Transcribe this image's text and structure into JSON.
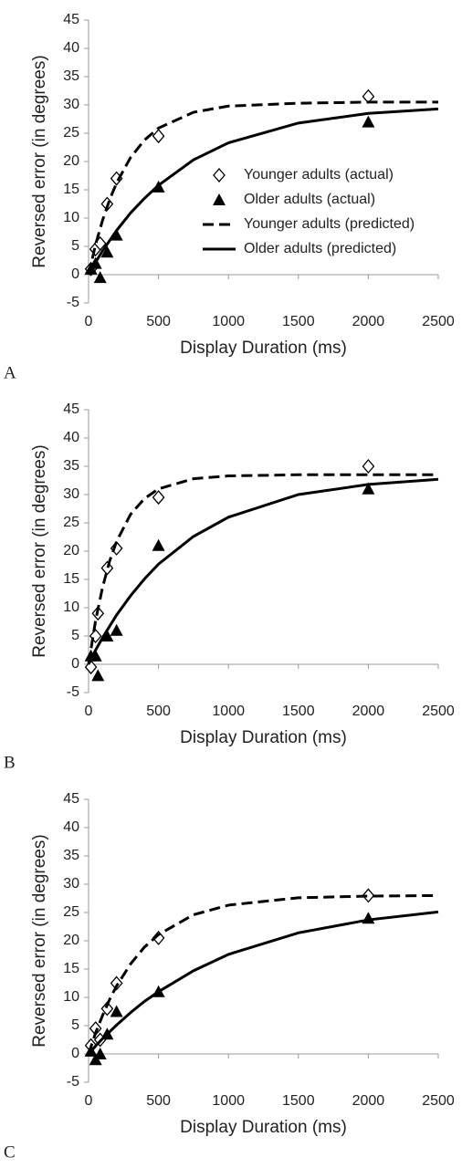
{
  "chart_data": [
    {
      "type": "scatter",
      "panel_label": "A",
      "xlabel": "Display Duration (ms)",
      "ylabel": "Reversed error (in degrees)",
      "xlim": [
        0,
        2500
      ],
      "xticks": [
        0,
        500,
        1000,
        1500,
        2000,
        2500
      ],
      "ylim": [
        -5,
        45
      ],
      "yticks": [
        -5,
        0,
        5,
        10,
        15,
        20,
        25,
        30,
        35,
        40,
        45
      ],
      "legend": "right",
      "series": [
        {
          "name": "Younger adults (actual)",
          "color": "#000000",
          "marker": "diamond",
          "x": [
            17,
            50,
            83,
            133,
            200,
            500,
            2000
          ],
          "values": [
            1,
            4.5,
            5.5,
            12.5,
            17,
            24.5,
            31.5
          ]
        },
        {
          "name": "Older adults (actual)",
          "color": "#000000",
          "marker": "triangle",
          "x": [
            17,
            50,
            83,
            133,
            200,
            500,
            2000
          ],
          "values": [
            1,
            2,
            -0.5,
            4,
            7,
            15.5,
            27
          ]
        },
        {
          "name": "Younger adults (predicted)",
          "color": "#000000",
          "line_style": "dashed",
          "x": [
            0,
            50,
            100,
            150,
            200,
            300,
            400,
            500,
            750,
            1000,
            1500,
            2000,
            2500
          ],
          "values": [
            0,
            5.3,
            9.6,
            13.2,
            16.2,
            20.7,
            23.8,
            25.9,
            28.7,
            29.8,
            30.3,
            30.5,
            30.5
          ]
        },
        {
          "name": "Older adults (predicted)",
          "color": "#000000",
          "line_style": "solid",
          "x": [
            0,
            50,
            100,
            150,
            200,
            300,
            400,
            500,
            750,
            1000,
            1500,
            2000,
            2500
          ],
          "values": [
            0,
            2.2,
            4.2,
            6.0,
            7.8,
            10.9,
            13.5,
            15.8,
            20.3,
            23.3,
            26.8,
            28.5,
            29.3
          ]
        }
      ]
    },
    {
      "type": "scatter",
      "panel_label": "B",
      "xlabel": "Display Duration (ms)",
      "ylabel": "Reversed error (in degrees)",
      "xlim": [
        0,
        2500
      ],
      "xticks": [
        0,
        500,
        1000,
        1500,
        2000,
        2500
      ],
      "ylim": [
        -5,
        45
      ],
      "yticks": [
        -5,
        0,
        5,
        10,
        15,
        20,
        25,
        30,
        35,
        40,
        45
      ],
      "series": [
        {
          "color": "#000000",
          "marker": "diamond",
          "x": [
            17,
            50,
            67,
            133,
            200,
            500,
            2000
          ],
          "values": [
            -0.5,
            5,
            9,
            17,
            20.5,
            29.5,
            35
          ]
        },
        {
          "color": "#000000",
          "marker": "triangle",
          "x": [
            17,
            50,
            67,
            133,
            200,
            500,
            2000
          ],
          "values": [
            1.5,
            1.5,
            -2,
            5,
            6,
            21,
            31
          ]
        },
        {
          "color": "#000000",
          "line_style": "dashed",
          "x": [
            0,
            50,
            100,
            150,
            200,
            300,
            400,
            500,
            750,
            1000,
            1500,
            2000,
            2500
          ],
          "values": [
            0,
            7.7,
            13.6,
            18.2,
            21.7,
            26.5,
            29.3,
            31.0,
            32.8,
            33.3,
            33.5,
            33.5,
            33.5
          ]
        },
        {
          "color": "#000000",
          "line_style": "solid",
          "x": [
            0,
            50,
            100,
            150,
            200,
            300,
            400,
            500,
            750,
            1000,
            1500,
            2000,
            2500
          ],
          "values": [
            0,
            2.5,
            4.7,
            6.7,
            8.7,
            12.1,
            15.1,
            17.7,
            22.6,
            26.0,
            30.0,
            31.8,
            32.7
          ]
        }
      ]
    },
    {
      "type": "scatter",
      "panel_label": "C",
      "xlabel": "Display Duration (ms)",
      "ylabel": "Reversed error (in degrees)",
      "xlim": [
        0,
        2500
      ],
      "xticks": [
        0,
        500,
        1000,
        1500,
        2000,
        2500
      ],
      "ylim": [
        -5,
        45
      ],
      "yticks": [
        -5,
        0,
        5,
        10,
        15,
        20,
        25,
        30,
        35,
        40,
        45
      ],
      "series": [
        {
          "color": "#000000",
          "marker": "diamond",
          "x": [
            17,
            50,
            83,
            133,
            200,
            500,
            2000
          ],
          "values": [
            1.5,
            4.5,
            2.5,
            8,
            12.5,
            20.5,
            28
          ]
        },
        {
          "color": "#000000",
          "marker": "triangle",
          "x": [
            17,
            50,
            83,
            133,
            200,
            500,
            2000
          ],
          "values": [
            0.5,
            -1,
            0,
            3.5,
            7.5,
            11,
            24
          ]
        },
        {
          "color": "#000000",
          "line_style": "dashed",
          "x": [
            0,
            50,
            100,
            150,
            200,
            300,
            400,
            500,
            750,
            1000,
            1500,
            2000,
            2500
          ],
          "values": [
            0,
            3.7,
            6.8,
            9.6,
            12.0,
            15.9,
            18.9,
            21.1,
            24.6,
            26.3,
            27.6,
            27.9,
            28.0
          ]
        },
        {
          "color": "#000000",
          "line_style": "solid",
          "x": [
            0,
            50,
            100,
            150,
            200,
            300,
            400,
            500,
            750,
            1000,
            1500,
            2000,
            2500
          ],
          "values": [
            0,
            1.4,
            2.7,
            3.9,
            5.1,
            7.3,
            9.3,
            11.0,
            14.7,
            17.6,
            21.4,
            23.7,
            25.1
          ]
        }
      ]
    }
  ]
}
